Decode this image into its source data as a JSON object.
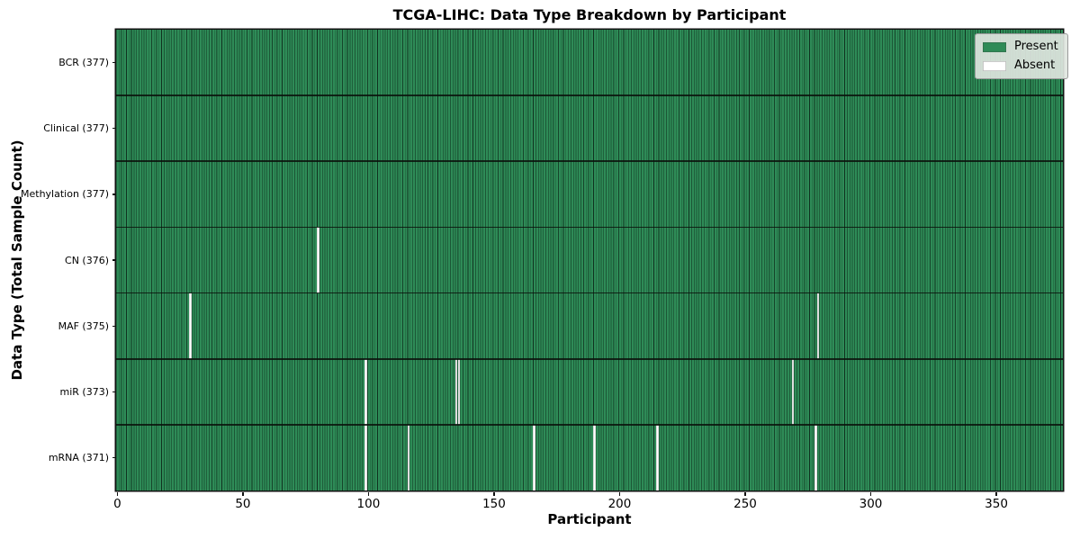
{
  "figure": {
    "title": "TCGA-LIHC: Data Type Breakdown by Participant",
    "xlabel": "Participant",
    "ylabel": "Data Type (Total Sample Count)"
  },
  "legend": {
    "items": [
      {
        "label": "Present",
        "color": "#2e8b57"
      },
      {
        "label": "Absent",
        "color": "#ffffff"
      }
    ]
  },
  "chart_data": {
    "type": "heatmap",
    "title": "TCGA-LIHC: Data Type Breakdown by Participant",
    "xlabel": "Participant",
    "ylabel": "Data Type (Total Sample Count)",
    "n_participants": 377,
    "xlim": [
      -0.5,
      376.5
    ],
    "x_ticks": [
      0,
      50,
      100,
      150,
      200,
      250,
      300,
      350
    ],
    "grid": false,
    "legend_position": "upper right",
    "colors": {
      "present": "#2e8b57",
      "absent": "#ffffff"
    },
    "rows": [
      {
        "label": "BCR (377)",
        "data_type": "BCR",
        "present_count": 377,
        "absent_participants": []
      },
      {
        "label": "Clinical (377)",
        "data_type": "Clinical",
        "present_count": 377,
        "absent_participants": []
      },
      {
        "label": "Methylation (377)",
        "data_type": "Methylation",
        "present_count": 377,
        "absent_participants": []
      },
      {
        "label": "CN (376)",
        "data_type": "CN",
        "present_count": 376,
        "absent_participants": [
          80
        ]
      },
      {
        "label": "MAF (375)",
        "data_type": "MAF",
        "present_count": 375,
        "absent_participants": [
          29,
          279
        ]
      },
      {
        "label": "miR (373)",
        "data_type": "miR",
        "present_count": 373,
        "absent_participants": [
          99,
          135,
          136,
          269
        ]
      },
      {
        "label": "mRNA (371)",
        "data_type": "mRNA",
        "present_count": 371,
        "absent_participants": [
          99,
          116,
          166,
          190,
          215,
          278
        ]
      }
    ]
  }
}
